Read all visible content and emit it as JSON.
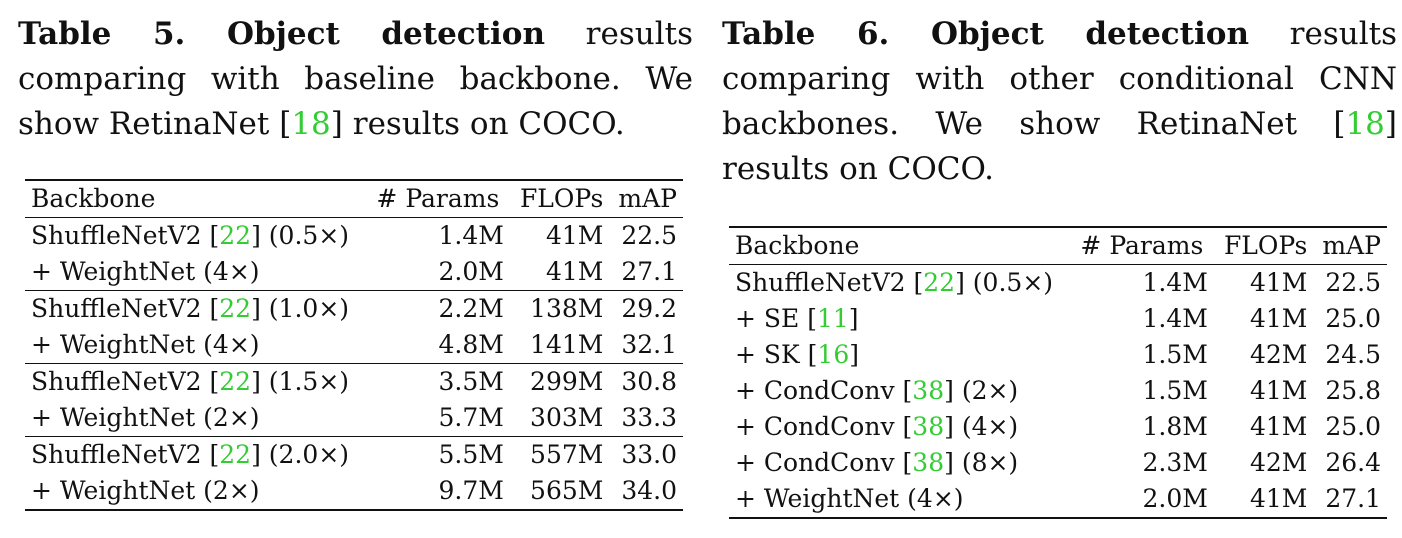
{
  "table5": {
    "caption": {
      "label": "Table 5. Object detection",
      "text_before": " results comparing with baseline backbone. We show RetinaNet ",
      "cite": "18",
      "text_after": " results on COCO."
    },
    "headers": [
      "Backbone",
      "#",
      "Params",
      "FLOPs",
      "mAP"
    ],
    "rows": [
      {
        "backbone": "ShuffleNetV2 ",
        "cite": "22",
        "suffix": " (0.5×)",
        "params": "1.4M",
        "flops": "41M",
        "map": "22.5",
        "bold": false
      },
      {
        "backbone": "+ WeightNet (4×)",
        "cite": "",
        "suffix": "",
        "params": "2.0M",
        "flops": "41M",
        "map": "27.1",
        "bold": true
      },
      {
        "backbone": "ShuffleNetV2 ",
        "cite": "22",
        "suffix": " (1.0×)",
        "params": "2.2M",
        "flops": "138M",
        "map": "29.2",
        "bold": false
      },
      {
        "backbone": "+ WeightNet (4×)",
        "cite": "",
        "suffix": "",
        "params": "4.8M",
        "flops": "141M",
        "map": "32.1",
        "bold": true
      },
      {
        "backbone": "ShuffleNetV2 ",
        "cite": "22",
        "suffix": " (1.5×)",
        "params": "3.5M",
        "flops": "299M",
        "map": "30.8",
        "bold": false
      },
      {
        "backbone": "+ WeightNet (2×)",
        "cite": "",
        "suffix": "",
        "params": "5.7M",
        "flops": "303M",
        "map": "33.3",
        "bold": true
      },
      {
        "backbone": "ShuffleNetV2 ",
        "cite": "22",
        "suffix": " (2.0×)",
        "params": "5.5M",
        "flops": "557M",
        "map": "33.0",
        "bold": false
      },
      {
        "backbone": "+ WeightNet (2×)",
        "cite": "",
        "suffix": "",
        "params": "9.7M",
        "flops": "565M",
        "map": "34.0",
        "bold": true
      }
    ]
  },
  "table6": {
    "caption": {
      "label": "Table 6. Object detection",
      "text_before": " results comparing with other conditional CNN backbones. We show RetinaNet ",
      "cite": "18",
      "text_after": " results on COCO."
    },
    "headers": [
      "Backbone",
      "#",
      "Params",
      "FLOPs",
      "mAP"
    ],
    "rows": [
      {
        "backbone": "ShuffleNetV2 ",
        "cite": "22",
        "suffix": " (0.5×)",
        "params": "1.4M",
        "flops": "41M",
        "map": "22.5",
        "bold": false
      },
      {
        "backbone": "+ SE ",
        "cite": "11",
        "suffix": "",
        "params": "1.4M",
        "flops": "41M",
        "map": "25.0",
        "bold": false
      },
      {
        "backbone": "+ SK ",
        "cite": "16",
        "suffix": "",
        "params": "1.5M",
        "flops": "42M",
        "map": "24.5",
        "bold": false
      },
      {
        "backbone": "+ CondConv ",
        "cite": "38",
        "suffix": " (2×)",
        "params": "1.5M",
        "flops": "41M",
        "map": "25.8",
        "bold": false
      },
      {
        "backbone": "+ CondConv ",
        "cite": "38",
        "suffix": " (4×)",
        "params": "1.8M",
        "flops": "41M",
        "map": "25.0",
        "bold": false
      },
      {
        "backbone": "+ CondConv ",
        "cite": "38",
        "suffix": " (8×)",
        "params": "2.3M",
        "flops": "42M",
        "map": "26.4",
        "bold": false
      },
      {
        "backbone": "+ WeightNet (4×)",
        "cite": "",
        "suffix": "",
        "params": "2.0M",
        "flops": "41M",
        "map": "27.1",
        "bold": true
      }
    ]
  },
  "colors": {
    "citation": "#33cc33",
    "text": "#111111"
  }
}
